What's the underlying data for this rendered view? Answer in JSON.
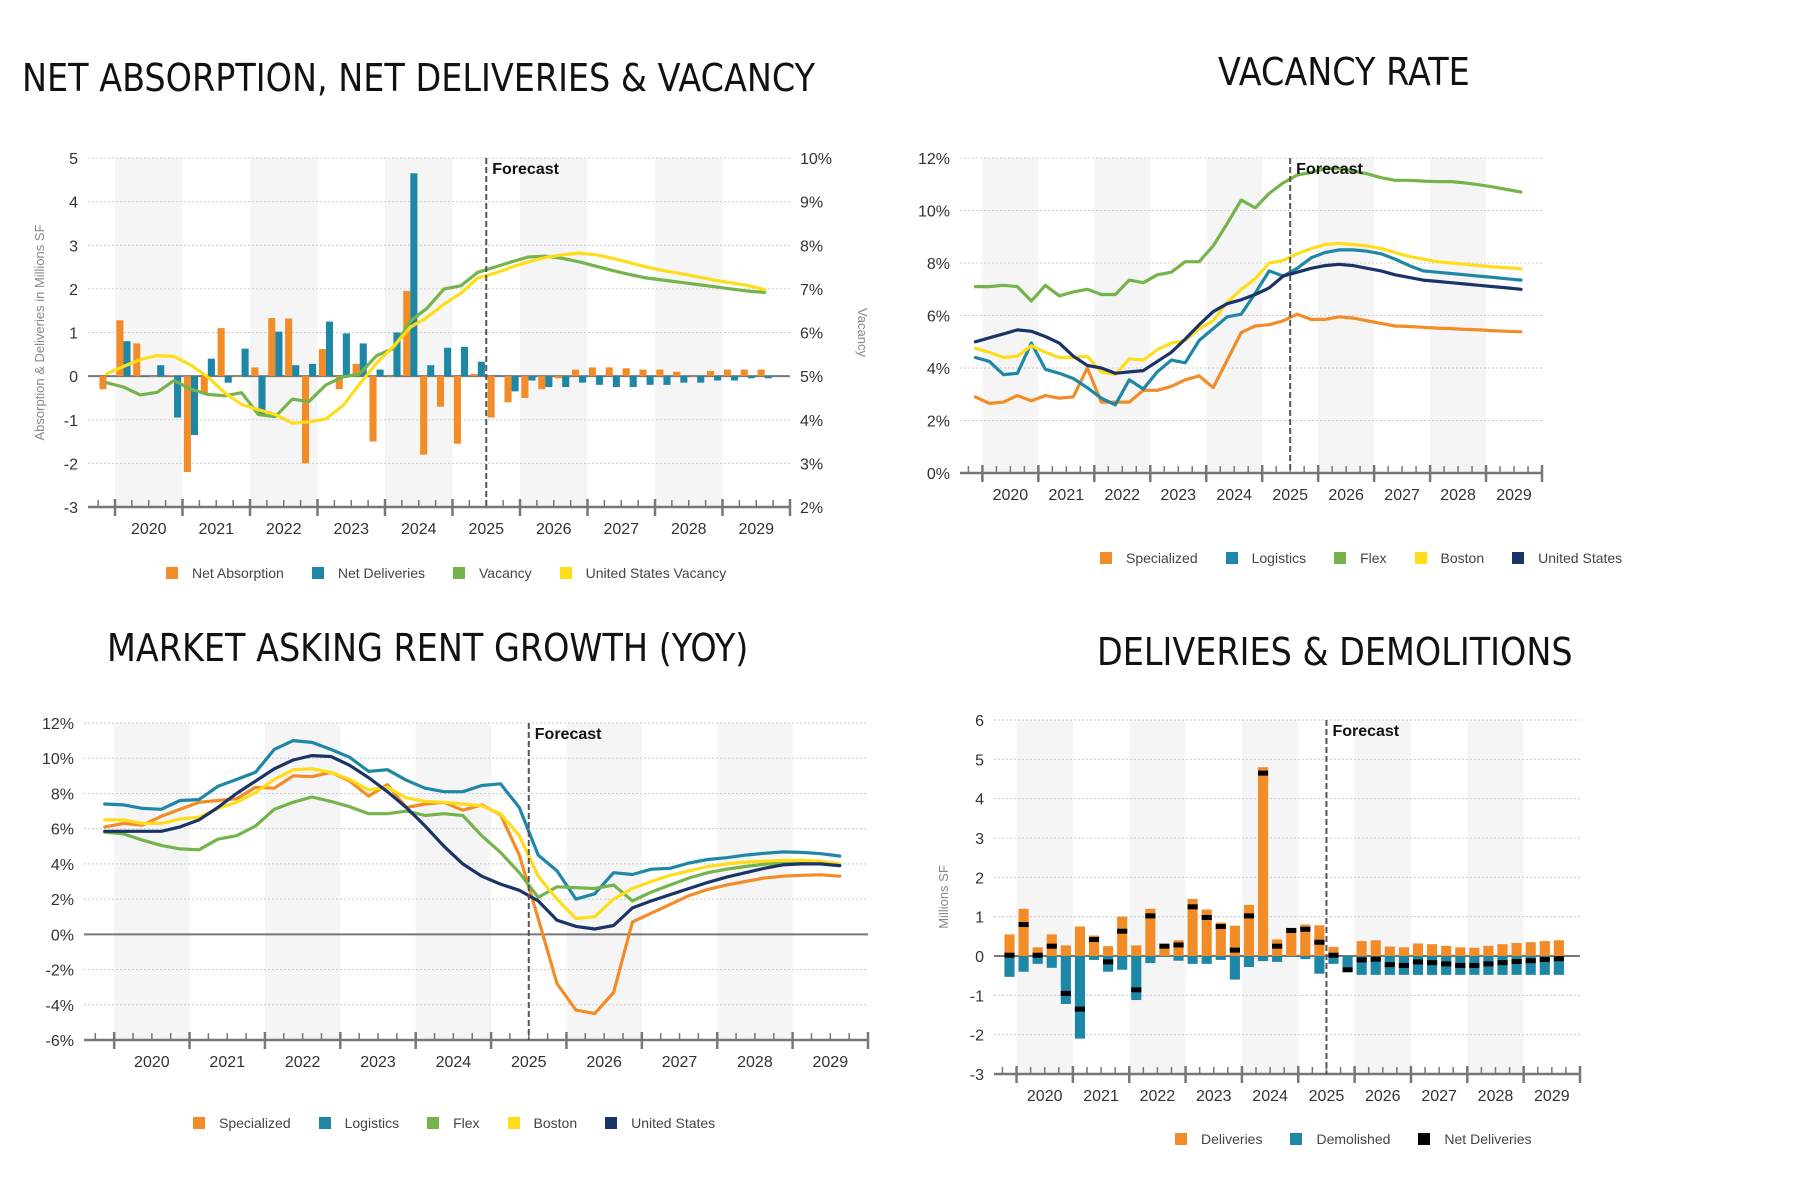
{
  "titles": {
    "absorption": "NET ABSORPTION, NET DELIVERIES & VACANCY",
    "vacancy": "VACANCY RATE",
    "rent": "MARKET ASKING RENT GROWTH (YOY)",
    "deliveries": "DELIVERIES & DEMOLITIONS"
  },
  "colors": {
    "orange": "#F28C28",
    "teal": "#1F87A6",
    "green": "#74B44A",
    "yellow": "#FFDD1A",
    "navy": "#1B3468",
    "black": "#000000",
    "band": "#F5F5F5",
    "axis": "#666666",
    "grid": "#CCCCCC",
    "forecast": "#555555"
  },
  "chart_data": [
    {
      "id": "absorption",
      "type": "bar",
      "title": "NET ABSORPTION, NET DELIVERIES & VACANCY",
      "ylabel": "Absorption & Deliveries in Millions SF",
      "y2label": "Vacancy",
      "ylim": [
        -3,
        5
      ],
      "yticks": [
        "5",
        "4",
        "3",
        "2",
        "1",
        "0",
        "-1",
        "-2",
        "-3"
      ],
      "y2lim": [
        2,
        10
      ],
      "y2ticks": [
        "10%",
        "9%",
        "8%",
        "7%",
        "6%",
        "5%",
        "4%",
        "3%",
        "2%"
      ],
      "x_start": "2019 Q4",
      "x_categories": [
        "2020",
        "2021",
        "2022",
        "2023",
        "2024",
        "2025",
        "2026",
        "2027",
        "2028",
        "2029"
      ],
      "forecast_label": "Forecast",
      "forecast_after_index": 22,
      "grid": true,
      "legend_position": "bottom",
      "series": [
        {
          "name": "Net Absorption",
          "kind": "bar",
          "axis": "left",
          "color": "#F28C28",
          "values": [
            -0.3,
            1.28,
            0.75,
            0.0,
            0.02,
            -2.2,
            -0.4,
            1.1,
            0.0,
            0.2,
            1.33,
            1.32,
            -2.0,
            0.62,
            -0.3,
            0.28,
            -1.5,
            0.0,
            1.95,
            -1.8,
            -0.7,
            -1.55,
            0.05,
            -0.95,
            -0.6,
            -0.5,
            -0.3,
            -0.05,
            0.15,
            0.2,
            0.2,
            0.18,
            0.15,
            0.15,
            0.1,
            0.0,
            0.12,
            0.15,
            0.15,
            0.15
          ]
        },
        {
          "name": "Net Deliveries",
          "kind": "bar",
          "axis": "left",
          "color": "#1F87A6",
          "values": [
            0.0,
            0.8,
            0.0,
            0.25,
            -0.95,
            -1.35,
            0.4,
            -0.15,
            0.63,
            -0.87,
            1.02,
            0.25,
            0.28,
            1.25,
            0.98,
            0.75,
            0.15,
            1.0,
            4.65,
            0.25,
            0.65,
            0.67,
            0.33,
            0.02,
            -0.35,
            -0.1,
            -0.25,
            -0.25,
            -0.15,
            -0.2,
            -0.25,
            -0.25,
            -0.2,
            -0.2,
            -0.15,
            -0.15,
            -0.1,
            -0.1,
            -0.05,
            -0.05
          ]
        },
        {
          "name": "Vacancy",
          "kind": "line",
          "axis": "right",
          "color": "#74B44A",
          "values": [
            4.85,
            4.75,
            4.57,
            4.63,
            4.9,
            4.7,
            4.58,
            4.55,
            4.62,
            4.12,
            4.07,
            4.47,
            4.42,
            4.8,
            4.98,
            5.05,
            5.47,
            5.63,
            6.26,
            6.56,
            7.0,
            7.07,
            7.38,
            7.5,
            7.62,
            7.73,
            7.75,
            7.7,
            7.62,
            7.52,
            7.42,
            7.33,
            7.25,
            7.2,
            7.15,
            7.1,
            7.05,
            7.0,
            6.95,
            6.92
          ]
        },
        {
          "name": "United States Vacancy",
          "kind": "line",
          "axis": "right",
          "color": "#FFDD1A",
          "values": [
            5.05,
            5.22,
            5.38,
            5.47,
            5.45,
            5.25,
            4.98,
            4.62,
            4.35,
            4.23,
            4.12,
            3.92,
            3.95,
            4.02,
            4.32,
            4.82,
            5.3,
            5.68,
            6.12,
            6.35,
            6.65,
            6.9,
            7.25,
            7.36,
            7.5,
            7.62,
            7.72,
            7.78,
            7.82,
            7.78,
            7.7,
            7.6,
            7.5,
            7.42,
            7.35,
            7.28,
            7.2,
            7.14,
            7.08,
            6.98
          ]
        }
      ]
    },
    {
      "id": "vacancy",
      "type": "line",
      "title": "VACANCY RATE",
      "ylim": [
        0,
        12
      ],
      "yticks": [
        "12%",
        "10%",
        "8%",
        "6%",
        "4%",
        "2%",
        "0%"
      ],
      "x_start": "2019 Q4",
      "x_categories": [
        "2020",
        "2021",
        "2022",
        "2023",
        "2024",
        "2025",
        "2026",
        "2027",
        "2028",
        "2029"
      ],
      "forecast_label": "Forecast",
      "forecast_after_index": 22,
      "grid": true,
      "legend_position": "bottom",
      "series": [
        {
          "name": "Specialized",
          "color": "#F28C28",
          "values": [
            2.9,
            2.65,
            2.7,
            2.95,
            2.75,
            2.95,
            2.85,
            2.9,
            4.0,
            2.7,
            2.7,
            2.7,
            3.15,
            3.15,
            3.3,
            3.55,
            3.7,
            3.25,
            4.3,
            5.35,
            5.6,
            5.65,
            5.8,
            6.05,
            5.85,
            5.85,
            5.95,
            5.9,
            5.8,
            5.7,
            5.6,
            5.58,
            5.55,
            5.52,
            5.5,
            5.47,
            5.45,
            5.42,
            5.4,
            5.38
          ]
        },
        {
          "name": "Logistics",
          "color": "#1F87A6",
          "values": [
            4.4,
            4.25,
            3.75,
            3.8,
            4.95,
            3.95,
            3.8,
            3.6,
            3.25,
            2.85,
            2.6,
            3.55,
            3.2,
            3.85,
            4.3,
            4.2,
            5.05,
            5.5,
            5.95,
            6.05,
            6.85,
            7.7,
            7.5,
            7.8,
            8.2,
            8.4,
            8.5,
            8.5,
            8.45,
            8.35,
            8.15,
            7.9,
            7.7,
            7.65,
            7.6,
            7.55,
            7.5,
            7.45,
            7.4,
            7.35
          ]
        },
        {
          "name": "Flex",
          "color": "#74B44A",
          "values": [
            7.1,
            7.1,
            7.15,
            7.1,
            6.55,
            7.15,
            6.75,
            6.9,
            7.0,
            6.8,
            6.8,
            7.35,
            7.25,
            7.55,
            7.65,
            8.05,
            8.05,
            8.65,
            9.5,
            10.4,
            10.1,
            10.65,
            11.05,
            11.35,
            11.45,
            11.6,
            11.6,
            11.5,
            11.4,
            11.25,
            11.15,
            11.15,
            11.12,
            11.1,
            11.1,
            11.05,
            10.98,
            10.9,
            10.8,
            10.7
          ]
        },
        {
          "name": "Boston",
          "color": "#FFDD1A",
          "values": [
            4.75,
            4.6,
            4.4,
            4.45,
            4.85,
            4.6,
            4.4,
            4.4,
            4.45,
            3.85,
            3.75,
            4.35,
            4.3,
            4.7,
            4.95,
            5.05,
            5.5,
            5.8,
            6.5,
            7.0,
            7.4,
            8.0,
            8.1,
            8.35,
            8.55,
            8.7,
            8.75,
            8.7,
            8.65,
            8.55,
            8.4,
            8.25,
            8.15,
            8.05,
            8.0,
            7.95,
            7.9,
            7.85,
            7.82,
            7.78
          ]
        },
        {
          "name": "United States",
          "color": "#1B3468",
          "values": [
            5.0,
            5.15,
            5.3,
            5.45,
            5.4,
            5.2,
            4.95,
            4.45,
            4.1,
            4.0,
            3.8,
            3.85,
            3.9,
            4.25,
            4.6,
            5.1,
            5.65,
            6.15,
            6.45,
            6.6,
            6.8,
            7.05,
            7.5,
            7.65,
            7.8,
            7.9,
            7.95,
            7.9,
            7.8,
            7.7,
            7.55,
            7.45,
            7.35,
            7.3,
            7.25,
            7.2,
            7.15,
            7.1,
            7.05,
            7.0
          ]
        }
      ]
    },
    {
      "id": "rent",
      "type": "line",
      "title": "MARKET ASKING RENT GROWTH (YOY)",
      "ylim": [
        -6,
        12
      ],
      "yticks": [
        "12%",
        "10%",
        "8%",
        "6%",
        "4%",
        "2%",
        "0%",
        "-2%",
        "-4%",
        "-6%"
      ],
      "x_start": "2019 Q4",
      "x_categories": [
        "2020",
        "2021",
        "2022",
        "2023",
        "2024",
        "2025",
        "2026",
        "2027",
        "2028",
        "2029"
      ],
      "forecast_label": "Forecast",
      "forecast_after_index": 22,
      "grid": true,
      "legend_position": "bottom",
      "series": [
        {
          "name": "Specialized",
          "color": "#F28C28",
          "values": [
            6.1,
            6.3,
            6.2,
            6.7,
            7.1,
            7.5,
            7.6,
            7.7,
            8.35,
            8.3,
            9.0,
            8.95,
            9.2,
            8.7,
            7.85,
            8.5,
            7.2,
            7.4,
            7.5,
            7.05,
            7.35,
            6.8,
            4.5,
            0.9,
            -2.8,
            -4.3,
            -4.5,
            -3.3,
            0.7,
            1.2,
            1.7,
            2.2,
            2.55,
            2.8,
            3.0,
            3.2,
            3.3,
            3.35,
            3.38,
            3.3
          ]
        },
        {
          "name": "Logistics",
          "color": "#1F87A6",
          "values": [
            7.4,
            7.35,
            7.15,
            7.1,
            7.6,
            7.65,
            8.4,
            8.8,
            9.2,
            10.5,
            11.0,
            10.9,
            10.5,
            10.05,
            9.25,
            9.35,
            8.75,
            8.3,
            8.1,
            8.1,
            8.45,
            8.55,
            7.2,
            4.5,
            3.6,
            2.0,
            2.3,
            3.5,
            3.4,
            3.7,
            3.75,
            4.05,
            4.25,
            4.35,
            4.5,
            4.6,
            4.68,
            4.65,
            4.58,
            4.45
          ]
        },
        {
          "name": "Flex",
          "color": "#74B44A",
          "values": [
            5.8,
            5.7,
            5.35,
            5.05,
            4.85,
            4.8,
            5.4,
            5.6,
            6.15,
            7.1,
            7.5,
            7.8,
            7.55,
            7.25,
            6.85,
            6.85,
            7.0,
            6.75,
            6.85,
            6.75,
            5.6,
            4.65,
            3.5,
            2.1,
            2.7,
            2.65,
            2.6,
            2.8,
            1.9,
            2.4,
            2.8,
            3.2,
            3.5,
            3.7,
            3.85,
            3.98,
            4.05,
            4.05,
            4.0,
            3.9
          ]
        },
        {
          "name": "Boston",
          "color": "#FFDD1A",
          "values": [
            6.5,
            6.5,
            6.3,
            6.3,
            6.55,
            6.65,
            7.15,
            7.5,
            8.05,
            8.8,
            9.35,
            9.4,
            9.2,
            8.8,
            8.2,
            8.35,
            7.75,
            7.55,
            7.5,
            7.4,
            7.3,
            6.85,
            5.6,
            3.3,
            2.0,
            0.9,
            1.0,
            2.0,
            2.6,
            3.0,
            3.35,
            3.6,
            3.85,
            4.0,
            4.1,
            4.15,
            4.2,
            4.2,
            4.15,
            4.0
          ]
        },
        {
          "name": "United States",
          "color": "#1B3468",
          "values": [
            5.85,
            5.85,
            5.85,
            5.85,
            6.1,
            6.5,
            7.2,
            8.0,
            8.7,
            9.4,
            9.9,
            10.15,
            10.1,
            9.6,
            8.9,
            8.1,
            7.2,
            6.15,
            5.0,
            4.0,
            3.3,
            2.85,
            2.5,
            1.9,
            0.8,
            0.45,
            0.3,
            0.5,
            1.5,
            1.9,
            2.25,
            2.6,
            2.95,
            3.25,
            3.5,
            3.75,
            3.95,
            4.0,
            4.0,
            3.9
          ]
        }
      ]
    },
    {
      "id": "deliveries",
      "type": "bar",
      "title": "DELIVERIES & DEMOLITIONS",
      "ylabel": "Millions SF",
      "ylim": [
        -3,
        6
      ],
      "yticks": [
        "6",
        "5",
        "4",
        "3",
        "2",
        "1",
        "0",
        "-1",
        "-2",
        "-3"
      ],
      "x_start": "2019 Q4",
      "x_categories": [
        "2020",
        "2021",
        "2022",
        "2023",
        "2024",
        "2025",
        "2026",
        "2027",
        "2028",
        "2029"
      ],
      "forecast_label": "Forecast",
      "forecast_after_index": 22,
      "grid": true,
      "legend_position": "bottom",
      "series": [
        {
          "name": "Deliveries",
          "kind": "bar",
          "color": "#F28C28",
          "values": [
            0.55,
            1.2,
            0.22,
            0.55,
            0.27,
            0.75,
            0.52,
            0.25,
            1.0,
            0.27,
            1.2,
            0.25,
            0.4,
            1.45,
            1.18,
            0.85,
            0.77,
            1.3,
            4.8,
            0.42,
            0.65,
            0.8,
            0.78,
            0.23,
            0.0,
            0.38,
            0.4,
            0.24,
            0.22,
            0.32,
            0.3,
            0.26,
            0.22,
            0.21,
            0.26,
            0.3,
            0.33,
            0.35,
            0.38,
            0.4
          ]
        },
        {
          "name": "Demolished",
          "kind": "bar",
          "color": "#1F87A6",
          "values": [
            -0.53,
            -0.4,
            -0.2,
            -0.3,
            -1.22,
            -2.1,
            -0.1,
            -0.4,
            -0.35,
            -1.12,
            -0.18,
            -0.02,
            -0.12,
            -0.2,
            -0.2,
            -0.1,
            -0.6,
            -0.28,
            -0.13,
            -0.15,
            -0.02,
            -0.08,
            -0.45,
            -0.2,
            -0.35,
            -0.48,
            -0.48,
            -0.48,
            -0.48,
            -0.48,
            -0.48,
            -0.48,
            -0.48,
            -0.48,
            -0.48,
            -0.48,
            -0.48,
            -0.48,
            -0.48,
            -0.48
          ]
        },
        {
          "name": "Net Deliveries",
          "kind": "marker",
          "color": "#000000",
          "values": [
            0.02,
            0.8,
            0.02,
            0.25,
            -0.95,
            -1.35,
            0.42,
            -0.15,
            0.63,
            -0.86,
            1.02,
            0.25,
            0.28,
            1.25,
            0.98,
            0.75,
            0.15,
            1.02,
            4.65,
            0.25,
            0.65,
            0.68,
            0.35,
            0.02,
            -0.35,
            -0.1,
            -0.08,
            -0.22,
            -0.24,
            -0.15,
            -0.17,
            -0.2,
            -0.24,
            -0.24,
            -0.2,
            -0.17,
            -0.14,
            -0.12,
            -0.09,
            -0.07
          ]
        }
      ]
    }
  ]
}
